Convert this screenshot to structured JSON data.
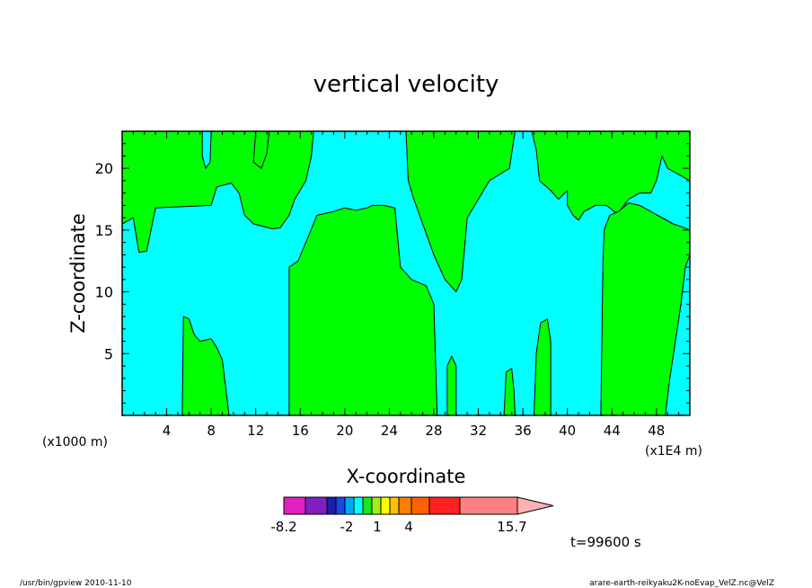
{
  "chart_data": {
    "type": "heatmap",
    "title": "vertical velocity",
    "xlabel": "X-coordinate",
    "ylabel": "Z-coordinate",
    "x_unit_label": "(x1000 m)",
    "x_multiplier_label": "(x1E4 m)",
    "xlim": [
      0,
      51
    ],
    "ylim": [
      0,
      23
    ],
    "x_ticks": [
      4,
      8,
      12,
      16,
      20,
      24,
      28,
      32,
      36,
      40,
      44,
      48
    ],
    "y_ticks": [
      5,
      10,
      15,
      20
    ],
    "time_label": "t=99600 s",
    "colorbar": {
      "colors": [
        "#e020c0",
        "#8020c0",
        "#1820a8",
        "#1848e8",
        "#00a8f0",
        "#00ffff",
        "#18e818",
        "#a0f018",
        "#ffff00",
        "#ffc000",
        "#ff8000",
        "#ff6000",
        "#ff2020",
        "#ff8080",
        "#ffb0b0"
      ],
      "tick_labels": [
        "-8.2",
        "-2",
        "1",
        "4",
        "15.7"
      ]
    },
    "regions": {
      "background_color": "#00ffff",
      "positive_color": "#00ff00",
      "polygons": [
        [
          [
            0,
            15.5
          ],
          [
            1,
            16
          ],
          [
            1.5,
            13.2
          ],
          [
            2.2,
            13.3
          ],
          [
            3,
            16.8
          ],
          [
            8,
            17
          ],
          [
            8.5,
            18.5
          ],
          [
            9.8,
            18.8
          ],
          [
            10.5,
            18
          ],
          [
            11,
            16.2
          ],
          [
            11.8,
            15.5
          ],
          [
            13.5,
            15.1
          ],
          [
            14.2,
            15.2
          ],
          [
            15,
            16.2
          ],
          [
            15.5,
            17.5
          ],
          [
            16.5,
            19
          ],
          [
            17,
            21
          ],
          [
            17.2,
            23
          ],
          [
            8,
            23
          ],
          [
            7.9,
            20.5
          ],
          [
            7.5,
            20
          ],
          [
            7.2,
            21
          ],
          [
            7.2,
            23
          ],
          [
            0,
            23
          ]
        ],
        [
          [
            12,
            23
          ],
          [
            11.8,
            20.5
          ],
          [
            12.5,
            20
          ],
          [
            13,
            21.2
          ],
          [
            13.2,
            23
          ]
        ],
        [
          [
            5.4,
            0
          ],
          [
            5.5,
            8
          ],
          [
            6,
            7.8
          ],
          [
            6.5,
            6.5
          ],
          [
            7,
            6
          ],
          [
            8,
            6.2
          ],
          [
            8.5,
            5.5
          ],
          [
            9,
            4.5
          ],
          [
            9.6,
            0
          ]
        ],
        [
          [
            15,
            0
          ],
          [
            15,
            12
          ],
          [
            15.8,
            12.5
          ],
          [
            16.5,
            14
          ],
          [
            17.5,
            16.2
          ],
          [
            19,
            16.5
          ],
          [
            20,
            16.8
          ],
          [
            21,
            16.6
          ],
          [
            22,
            16.8
          ],
          [
            22.5,
            17
          ],
          [
            23.5,
            17
          ],
          [
            24.5,
            16.8
          ],
          [
            25,
            12
          ],
          [
            26,
            11
          ],
          [
            27.3,
            10.5
          ],
          [
            28,
            9
          ],
          [
            28.3,
            0
          ]
        ],
        [
          [
            25.5,
            23
          ],
          [
            25.7,
            19
          ],
          [
            26.2,
            17.5
          ],
          [
            27,
            15.5
          ],
          [
            28,
            13
          ],
          [
            29,
            11
          ],
          [
            30,
            10
          ],
          [
            30.5,
            11
          ],
          [
            31,
            16
          ],
          [
            32,
            17.5
          ],
          [
            33,
            19
          ],
          [
            34.8,
            20
          ],
          [
            35.3,
            23
          ]
        ],
        [
          [
            29.2,
            0
          ],
          [
            29.2,
            4
          ],
          [
            29.6,
            4.8
          ],
          [
            30,
            4
          ],
          [
            30,
            0
          ]
        ],
        [
          [
            34.3,
            0
          ],
          [
            34.5,
            3.5
          ],
          [
            35,
            3.8
          ],
          [
            35.2,
            2
          ],
          [
            35.3,
            0
          ]
        ],
        [
          [
            37,
            0
          ],
          [
            37.2,
            5
          ],
          [
            37.6,
            7.5
          ],
          [
            38.2,
            7.8
          ],
          [
            38.5,
            6
          ],
          [
            38.5,
            0
          ]
        ],
        [
          [
            36.8,
            23
          ],
          [
            37.2,
            21.5
          ],
          [
            37.5,
            19
          ],
          [
            38.5,
            18.2
          ],
          [
            39.2,
            17.5
          ],
          [
            40,
            18.2
          ],
          [
            40,
            17
          ],
          [
            40.5,
            16.2
          ],
          [
            41,
            15.8
          ],
          [
            41.5,
            16.5
          ],
          [
            42.5,
            17
          ],
          [
            43.5,
            17
          ],
          [
            44.5,
            16.3
          ],
          [
            45.5,
            17.5
          ],
          [
            46.5,
            18
          ],
          [
            47.5,
            18
          ],
          [
            48,
            19
          ],
          [
            48.5,
            21
          ],
          [
            49,
            20
          ],
          [
            50,
            19.5
          ],
          [
            51,
            19
          ],
          [
            51,
            23
          ]
        ],
        [
          [
            43,
            0
          ],
          [
            43.2,
            12.5
          ],
          [
            43.3,
            15
          ],
          [
            43.8,
            16.2
          ],
          [
            44.6,
            16.5
          ],
          [
            45.5,
            17.2
          ],
          [
            46.5,
            17
          ],
          [
            47.5,
            16.5
          ],
          [
            48.5,
            16
          ],
          [
            49.5,
            15.5
          ],
          [
            50.5,
            15.2
          ],
          [
            51,
            15
          ],
          [
            51,
            13
          ],
          [
            50.6,
            12
          ],
          [
            50.2,
            9
          ],
          [
            49.7,
            6
          ],
          [
            49.2,
            3
          ],
          [
            48.8,
            0
          ]
        ]
      ]
    }
  },
  "footer": {
    "program": "/usr/bin/gpview  2010-11-10",
    "source": "arare-earth-reikyaku2K-noEvap_VelZ.nc@VelZ"
  }
}
